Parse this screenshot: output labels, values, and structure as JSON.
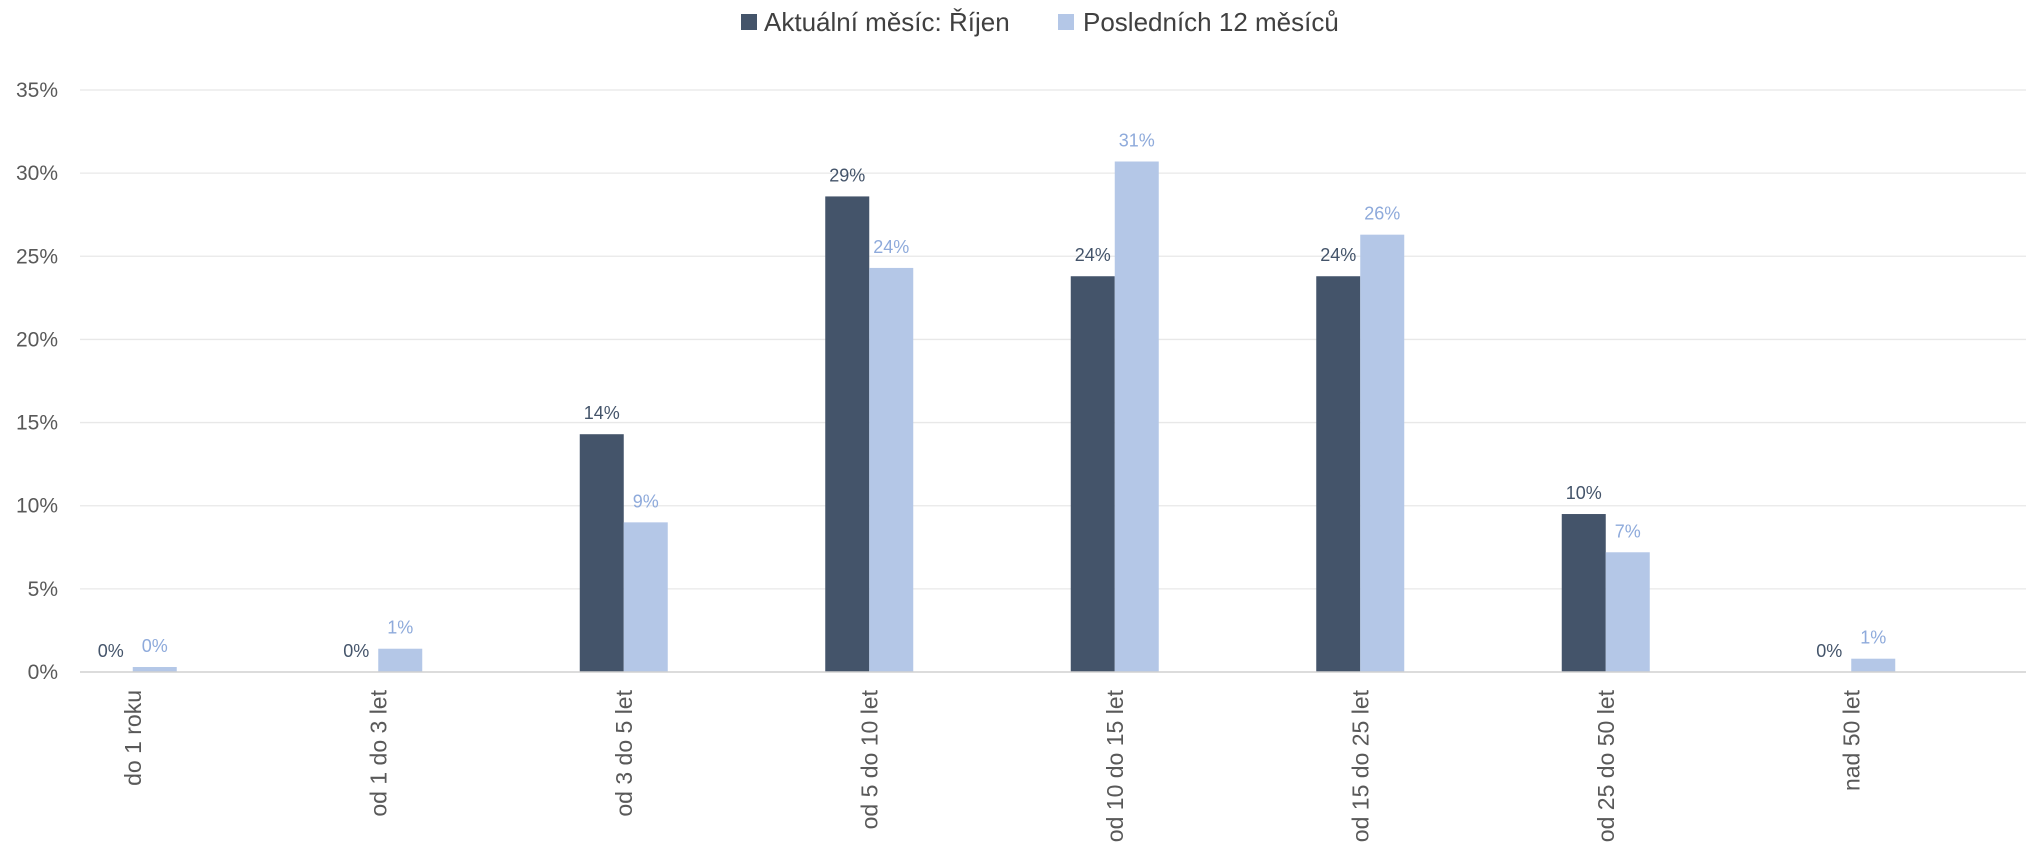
{
  "chart_data": {
    "type": "bar",
    "categories": [
      "do 1 roku",
      "od 1 do 3 let",
      "od 3 do 5 let",
      "od 5 do 10 let",
      "od 10 do 15 let",
      "od 15 do 25 let",
      "od 25 do 50 let",
      "nad 50 let"
    ],
    "series": [
      {
        "name": "Aktuální měsíc: Říjen",
        "color": "#44546a",
        "values": [
          0,
          0,
          14.3,
          28.6,
          23.8,
          23.8,
          9.5,
          0
        ],
        "labels": [
          "0%",
          "0%",
          "14%",
          "29%",
          "24%",
          "24%",
          "10%",
          "0%"
        ]
      },
      {
        "name": "Posledních 12 měsíců",
        "color": "#b4c7e7",
        "values": [
          0.3,
          1.4,
          9.0,
          24.3,
          30.7,
          26.3,
          7.2,
          0.8
        ],
        "labels": [
          "0%",
          "1%",
          "9%",
          "24%",
          "31%",
          "26%",
          "7%",
          "1%"
        ]
      }
    ],
    "y_ticks": [
      "0%",
      "5%",
      "10%",
      "15%",
      "20%",
      "25%",
      "30%",
      "35%"
    ],
    "ylim": [
      0,
      35
    ],
    "y_unit": "%",
    "xlabel": "",
    "ylabel": "",
    "legend_position": "top-center",
    "grid": true,
    "gridline_color": "#e8e8e8",
    "axis_color": "#d0d0d0",
    "label_color_series1": "#44546a",
    "label_color_series2": "#8eaadb"
  }
}
